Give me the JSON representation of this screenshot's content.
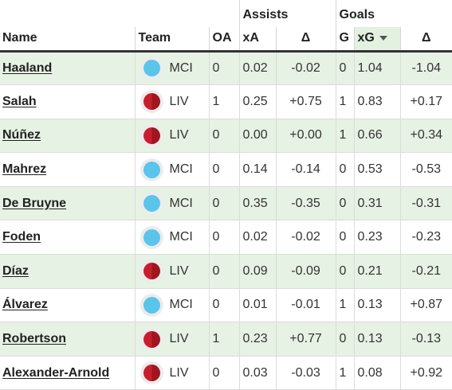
{
  "groups": {
    "assists": "Assists",
    "goals": "Goals"
  },
  "headers": {
    "name": "Name",
    "team": "Team",
    "oa": "OA",
    "xa": "xA",
    "delta_a": "Δ",
    "g": "G",
    "xg": "xG",
    "delta_g": "Δ"
  },
  "sort": {
    "column": "xG",
    "direction": "descending",
    "icon": "sort-down-icon"
  },
  "team_colors": {
    "MCI": "#5bc4eb",
    "LIV": "#c81e2c"
  },
  "rows": [
    {
      "name": "Haaland",
      "team": "MCI",
      "oa": "0",
      "xa": "0.02",
      "delta_a": "-0.02",
      "g": "0",
      "xg": "1.04",
      "delta_g": "-1.04"
    },
    {
      "name": "Salah",
      "team": "LIV",
      "oa": "1",
      "xa": "0.25",
      "delta_a": "+0.75",
      "g": "1",
      "xg": "0.83",
      "delta_g": "+0.17"
    },
    {
      "name": "Núñez",
      "team": "LIV",
      "oa": "0",
      "xa": "0.00",
      "delta_a": "+0.00",
      "g": "1",
      "xg": "0.66",
      "delta_g": "+0.34"
    },
    {
      "name": "Mahrez",
      "team": "MCI",
      "oa": "0",
      "xa": "0.14",
      "delta_a": "-0.14",
      "g": "0",
      "xg": "0.53",
      "delta_g": "-0.53"
    },
    {
      "name": "De Bruyne",
      "team": "MCI",
      "oa": "0",
      "xa": "0.35",
      "delta_a": "-0.35",
      "g": "0",
      "xg": "0.31",
      "delta_g": "-0.31"
    },
    {
      "name": "Foden",
      "team": "MCI",
      "oa": "0",
      "xa": "0.02",
      "delta_a": "-0.02",
      "g": "0",
      "xg": "0.23",
      "delta_g": "-0.23"
    },
    {
      "name": "Díaz",
      "team": "LIV",
      "oa": "0",
      "xa": "0.09",
      "delta_a": "-0.09",
      "g": "0",
      "xg": "0.21",
      "delta_g": "-0.21"
    },
    {
      "name": "Álvarez",
      "team": "MCI",
      "oa": "0",
      "xa": "0.01",
      "delta_a": "-0.01",
      "g": "1",
      "xg": "0.13",
      "delta_g": "+0.87"
    },
    {
      "name": "Robertson",
      "team": "LIV",
      "oa": "1",
      "xa": "0.23",
      "delta_a": "+0.77",
      "g": "0",
      "xg": "0.13",
      "delta_g": "-0.13"
    },
    {
      "name": "Alexander-Arnold",
      "team": "LIV",
      "oa": "0",
      "xa": "0.03",
      "delta_a": "-0.03",
      "g": "1",
      "xg": "0.08",
      "delta_g": "+0.92"
    }
  ]
}
